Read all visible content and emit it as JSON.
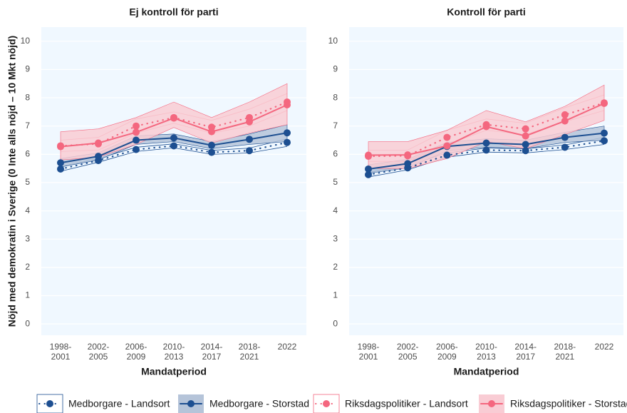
{
  "chart_data": [
    {
      "type": "line",
      "title": "Ej kontroll för parti",
      "x_label": "Mandatperiod",
      "y_label": "Nöjd med demokratin i Sverige (0 Inte alls nöjd – 10 Mkt nöjd)",
      "categories": [
        "1998-\n2001",
        "2002-\n2005",
        "2006-\n2009",
        "2010-\n2013",
        "2014-\n2017",
        "2018-\n2021",
        "2022"
      ],
      "ylim": [
        -0.4,
        10.5
      ],
      "yticks": [
        0,
        1,
        2,
        3,
        4,
        5,
        6,
        7,
        8,
        9,
        10
      ],
      "grid": true,
      "legend": "bottom",
      "series": [
        {
          "name": "Medborgare - Landsort",
          "color": "#1d4f91",
          "style": "dotted",
          "band": "outline",
          "values": [
            5.48,
            5.78,
            6.17,
            6.3,
            6.07,
            6.13,
            6.42
          ],
          "lower": [
            5.4,
            5.72,
            6.1,
            6.23,
            6.0,
            6.05,
            6.28
          ],
          "upper": [
            5.56,
            5.85,
            6.25,
            6.37,
            6.14,
            6.22,
            6.55
          ]
        },
        {
          "name": "Medborgare - Storstad",
          "color": "#1d4f91",
          "style": "solid",
          "band": "fill",
          "values": [
            5.7,
            5.93,
            6.5,
            6.58,
            6.32,
            6.53,
            6.76
          ],
          "lower": [
            5.55,
            5.8,
            6.35,
            6.45,
            6.2,
            6.35,
            6.45
          ],
          "upper": [
            5.85,
            6.05,
            6.65,
            6.72,
            6.45,
            6.72,
            7.05
          ]
        },
        {
          "name": "Riksdagspolitiker - Landsort",
          "color": "#f4677f",
          "style": "dotted",
          "band": "outline",
          "values": [
            6.3,
            6.37,
            7.0,
            7.3,
            6.96,
            7.3,
            7.85
          ],
          "lower": [
            6.1,
            6.15,
            6.75,
            7.1,
            6.75,
            7.0,
            7.55
          ],
          "upper": [
            6.5,
            6.6,
            7.25,
            7.5,
            7.2,
            7.6,
            8.15
          ]
        },
        {
          "name": "Riksdagspolitiker - Storstad",
          "color": "#f4677f",
          "style": "solid",
          "band": "fill",
          "values": [
            6.27,
            6.4,
            6.78,
            7.28,
            6.8,
            7.15,
            7.75
          ],
          "lower": [
            5.8,
            5.9,
            6.35,
            6.95,
            6.4,
            6.75,
            7.05
          ],
          "upper": [
            6.8,
            6.9,
            7.3,
            7.85,
            7.3,
            7.85,
            8.5
          ]
        }
      ]
    },
    {
      "type": "line",
      "title": "Kontroll för parti",
      "x_label": "Mandatperiod",
      "categories": [
        "1998-\n2001",
        "2002-\n2005",
        "2006-\n2009",
        "2010-\n2013",
        "2014-\n2017",
        "2018-\n2021",
        "2022"
      ],
      "ylim": [
        -0.4,
        10.5
      ],
      "yticks": [
        0,
        1,
        2,
        3,
        4,
        5,
        6,
        7,
        8,
        9,
        10
      ],
      "grid": true,
      "series": [
        {
          "name": "Medborgare - Landsort",
          "color": "#1d4f91",
          "style": "dotted",
          "band": "outline",
          "values": [
            5.28,
            5.52,
            5.97,
            6.15,
            6.13,
            6.25,
            6.48
          ],
          "lower": [
            5.2,
            5.45,
            5.9,
            6.08,
            6.05,
            6.17,
            6.35
          ],
          "upper": [
            5.36,
            5.6,
            6.05,
            6.22,
            6.2,
            6.33,
            6.6
          ]
        },
        {
          "name": "Medborgare - Storstad",
          "color": "#1d4f91",
          "style": "solid",
          "band": "fill",
          "values": [
            5.48,
            5.67,
            6.28,
            6.4,
            6.35,
            6.6,
            6.75
          ],
          "lower": [
            5.33,
            5.52,
            6.12,
            6.25,
            6.2,
            6.42,
            6.5
          ],
          "upper": [
            5.63,
            5.82,
            6.42,
            6.55,
            6.5,
            6.78,
            7.0
          ]
        },
        {
          "name": "Riksdagspolitiker - Landsort",
          "color": "#f4677f",
          "style": "dotted",
          "band": "outline",
          "values": [
            5.93,
            5.95,
            6.6,
            7.05,
            6.9,
            7.4,
            7.82
          ],
          "lower": [
            5.75,
            5.75,
            6.35,
            6.85,
            6.7,
            7.15,
            7.55
          ],
          "upper": [
            6.15,
            6.15,
            6.85,
            7.25,
            7.1,
            7.65,
            8.1
          ]
        },
        {
          "name": "Riksdagspolitiker - Storstad",
          "color": "#f4677f",
          "style": "solid",
          "band": "fill",
          "values": [
            5.97,
            5.98,
            6.3,
            6.98,
            6.65,
            7.18,
            7.8
          ],
          "lower": [
            5.5,
            5.5,
            5.85,
            6.45,
            6.2,
            6.7,
            7.2
          ],
          "upper": [
            6.45,
            6.45,
            6.85,
            7.55,
            7.15,
            7.7,
            8.45
          ]
        }
      ]
    }
  ]
}
